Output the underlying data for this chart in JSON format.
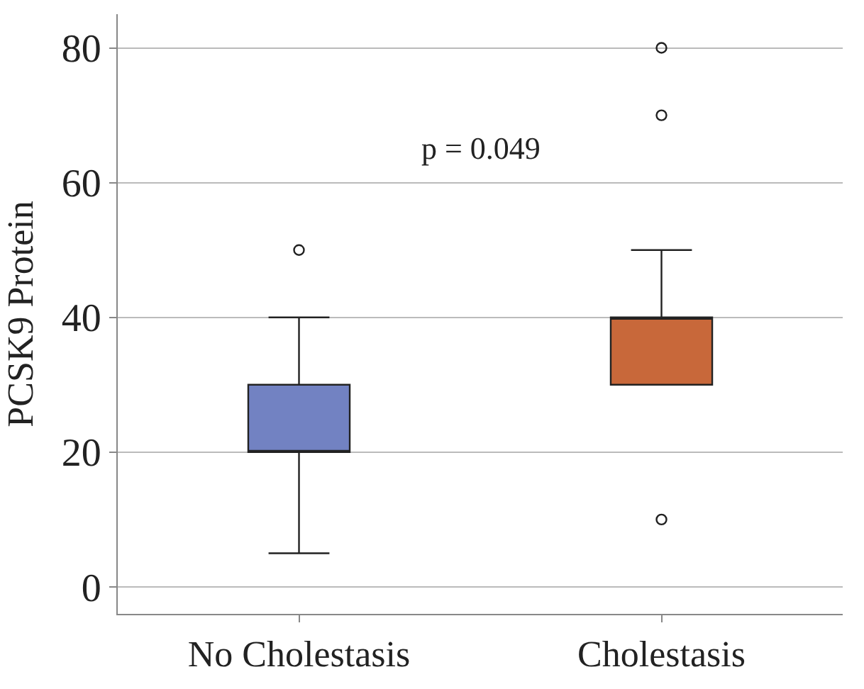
{
  "chart_data": {
    "type": "box",
    "categories": [
      "No Cholestasis",
      "Cholestasis"
    ],
    "boxes": [
      {
        "low": 5,
        "q1": 20,
        "median": 20,
        "q3": 30,
        "high": 40,
        "outliers": [
          50
        ]
      },
      {
        "low": 30,
        "q1": 30,
        "median": 40,
        "q3": 40,
        "high": 50,
        "outliers": [
          10,
          70,
          80
        ]
      }
    ],
    "colors": [
      "#7282c2",
      "#c8683a"
    ],
    "ylabel": "PCSK9 Protein",
    "ylim": [
      -4,
      85
    ],
    "yticks": [
      0,
      20,
      40,
      60,
      80
    ],
    "grid": "y",
    "marker": "circle",
    "annotations": [
      "p = 0.049"
    ]
  }
}
